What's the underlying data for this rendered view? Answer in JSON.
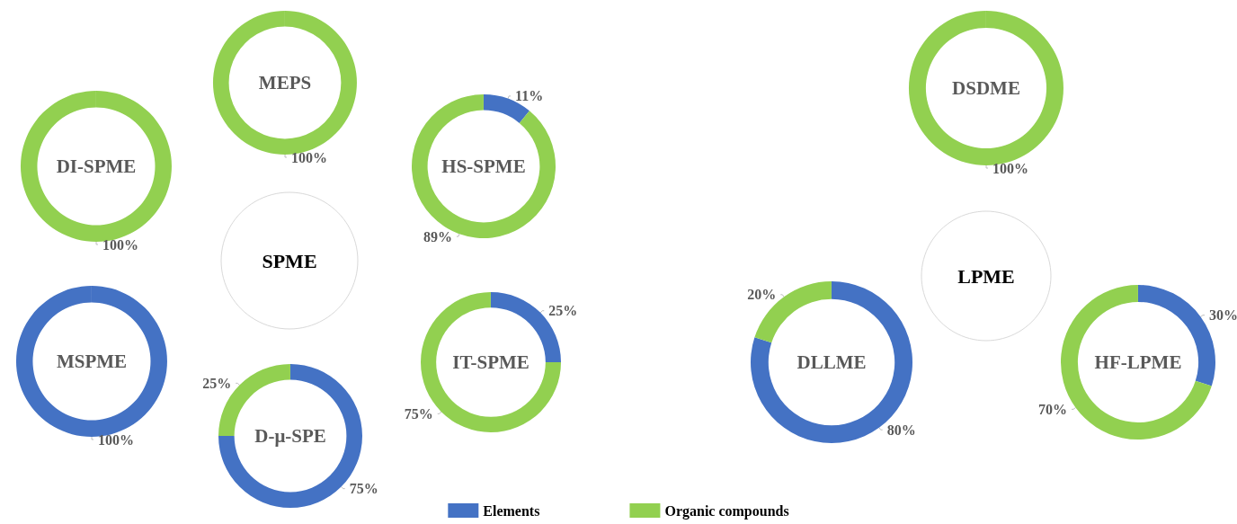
{
  "chart_data": {
    "type": "donut",
    "categories": [
      "Elements",
      "Organic compounds"
    ],
    "legend": "bottom",
    "annotations": [
      "SPME",
      "LPME"
    ],
    "series": [
      {
        "name": "MEPS",
        "values": [
          null,
          100
        ],
        "colors": [
          "#4472c4",
          "#92d050"
        ],
        "value_labels": [
          null,
          "100%"
        ]
      },
      {
        "name": "DSDME",
        "values": [
          null,
          100
        ],
        "colors": [
          "#4472c4",
          "#92d050"
        ],
        "value_labels": [
          null,
          "100%"
        ]
      },
      {
        "name": "DI-SPME",
        "values": [
          null,
          100
        ],
        "colors": [
          "#4472c4",
          "#92d050"
        ],
        "value_labels": [
          null,
          "100%"
        ]
      },
      {
        "name": "HS-SPME",
        "values": [
          11,
          89
        ],
        "colors": [
          "#4472c4",
          "#92d050"
        ],
        "value_labels": [
          "11%",
          "89%"
        ]
      },
      {
        "name": "MSPME",
        "values": [
          100,
          null
        ],
        "colors": [
          "#4472c4",
          "#92d050"
        ],
        "value_labels": [
          "100%",
          null
        ]
      },
      {
        "name": "IT-SPME",
        "values": [
          25,
          75
        ],
        "colors": [
          "#4472c4",
          "#92d050"
        ],
        "value_labels": [
          "25%",
          "75%"
        ]
      },
      {
        "name": "DLLME",
        "values": [
          80,
          20
        ],
        "colors": [
          "#4472c4",
          "#92d050"
        ],
        "value_labels": [
          "80%",
          "20%"
        ]
      },
      {
        "name": "HF-LPME",
        "values": [
          30,
          70
        ],
        "colors": [
          "#4472c4",
          "#92d050"
        ],
        "value_labels": [
          "30%",
          "70%"
        ]
      },
      {
        "name": "D-μ-SPE",
        "values": [
          75,
          25
        ],
        "colors": [
          "#4472c4",
          "#92d050"
        ],
        "value_labels": [
          "75%",
          "25%"
        ]
      }
    ]
  }
}
